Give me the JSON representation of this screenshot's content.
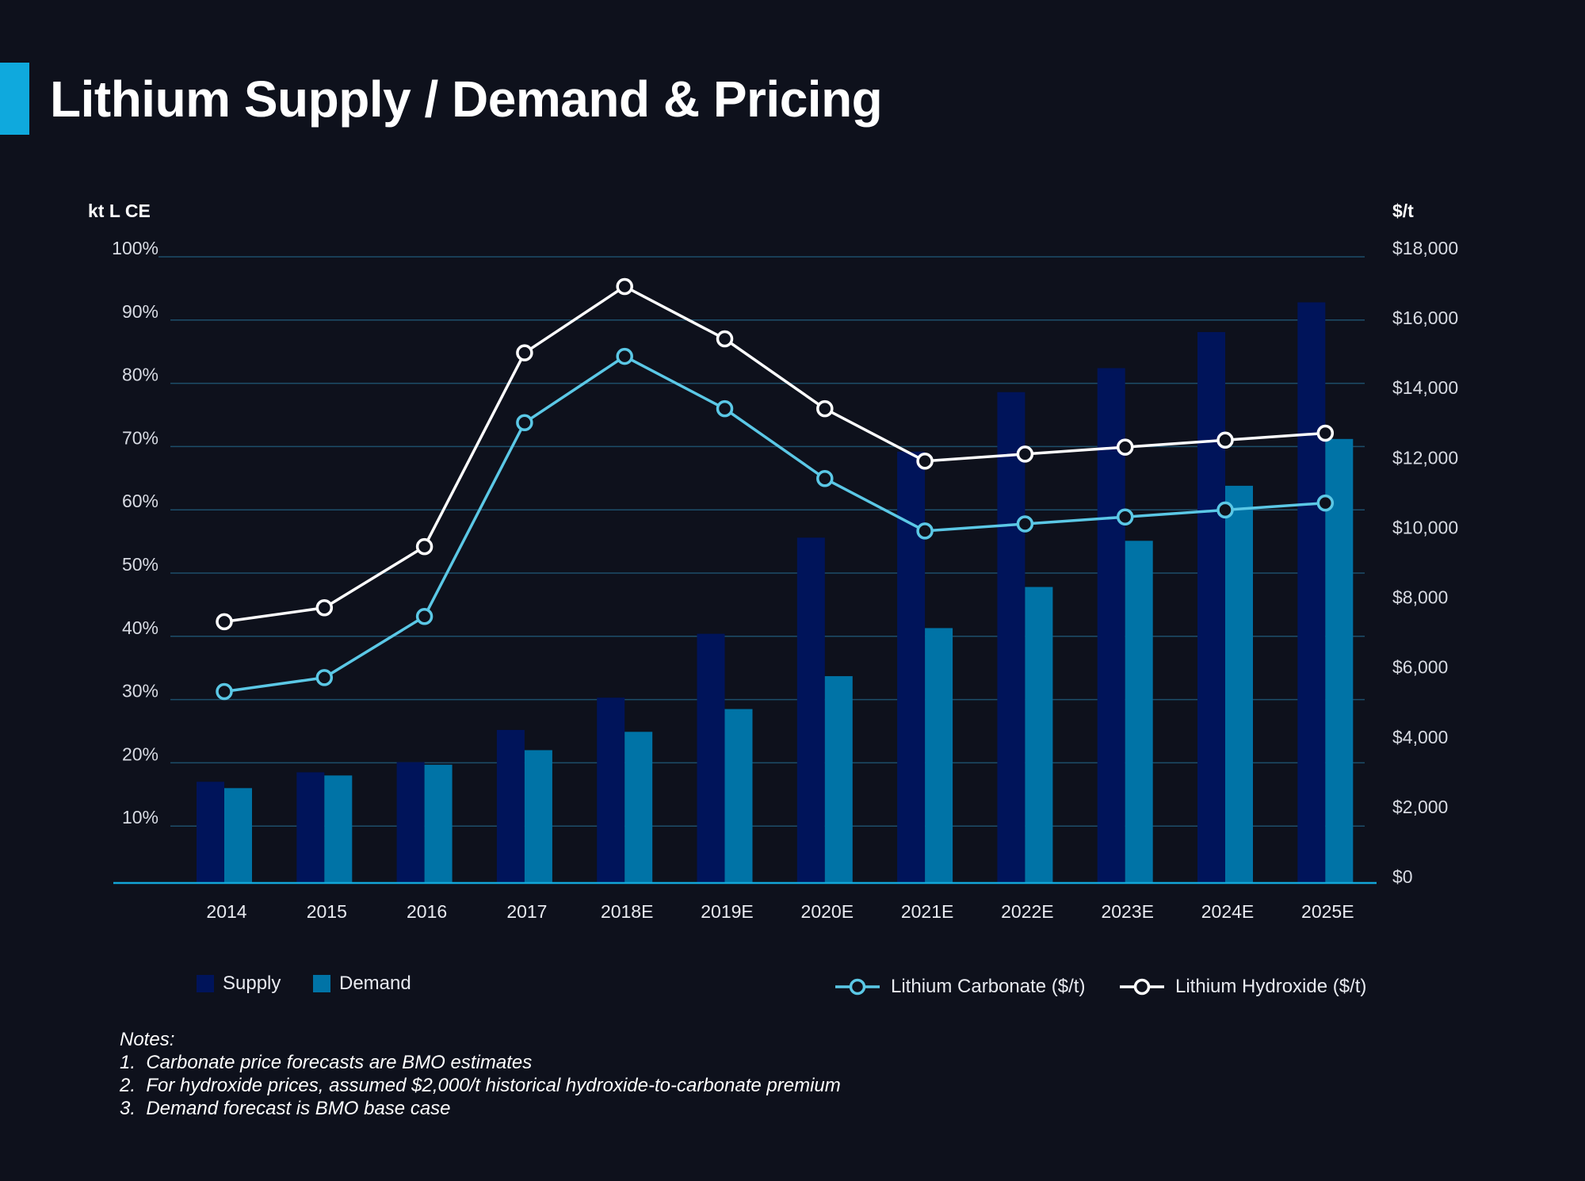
{
  "title": "Lithium Supply / Demand & Pricing",
  "colors": {
    "background": "#0e111c",
    "accent": "#0fa9dd",
    "supply": "#00145a",
    "demand": "#0073a6",
    "carbonate": "#5bc8e6",
    "hydroxide": "#ffffff",
    "grid": "#1d4e6a",
    "baseline": "#12a6d8"
  },
  "chart_data": {
    "type": "bar+line",
    "categories": [
      "2014",
      "2015",
      "2016",
      "2017",
      "2018E",
      "2019E",
      "2020E",
      "2021E",
      "2022E",
      "2023E",
      "2024E",
      "2025E"
    ],
    "left_axis": {
      "label": "kt L CE",
      "ticks": [
        "10%",
        "20%",
        "30%",
        "40%",
        "50%",
        "60%",
        "70%",
        "80%",
        "90%",
        "100%"
      ],
      "range": [
        0,
        100
      ]
    },
    "right_axis": {
      "label": "$/t",
      "ticks": [
        "$0",
        "$2,000",
        "$4,000",
        "$6,000",
        "$8,000",
        "$10,000",
        "$12,000",
        "$14,000",
        "$16,000",
        "$18,000"
      ],
      "range": [
        0,
        18000
      ]
    },
    "grid": true,
    "bar_series": [
      {
        "name": "Supply",
        "axis": "left",
        "values": [
          17.0,
          18.5,
          20.1,
          25.2,
          30.3,
          40.4,
          55.6,
          69.2,
          78.6,
          82.4,
          88.1,
          92.8
        ]
      },
      {
        "name": "Demand",
        "axis": "left",
        "values": [
          16.0,
          18.0,
          19.7,
          22.0,
          24.9,
          28.5,
          33.7,
          41.3,
          47.8,
          55.1,
          63.8,
          71.2
        ]
      }
    ],
    "line_series": [
      {
        "name": "Lithium Carbonate ($/t)",
        "axis": "right",
        "values": [
          5300,
          5700,
          7450,
          13000,
          14900,
          13400,
          11400,
          9900,
          10100,
          10300,
          10500,
          10700
        ]
      },
      {
        "name": "Lithium Hydroxide ($/t)",
        "axis": "right",
        "values": [
          7300,
          7700,
          9450,
          15000,
          16900,
          15400,
          13400,
          11900,
          12100,
          12300,
          12500,
          12700
        ]
      }
    ],
    "legend_placement": "bottom"
  },
  "notes": {
    "heading": "Notes:",
    "items": [
      "1.  Carbonate price forecasts are BMO estimates",
      "2.  For hydroxide prices, assumed $2,000/t historical hydroxide-to-carbonate premium",
      "3.  Demand forecast is BMO base case"
    ]
  }
}
